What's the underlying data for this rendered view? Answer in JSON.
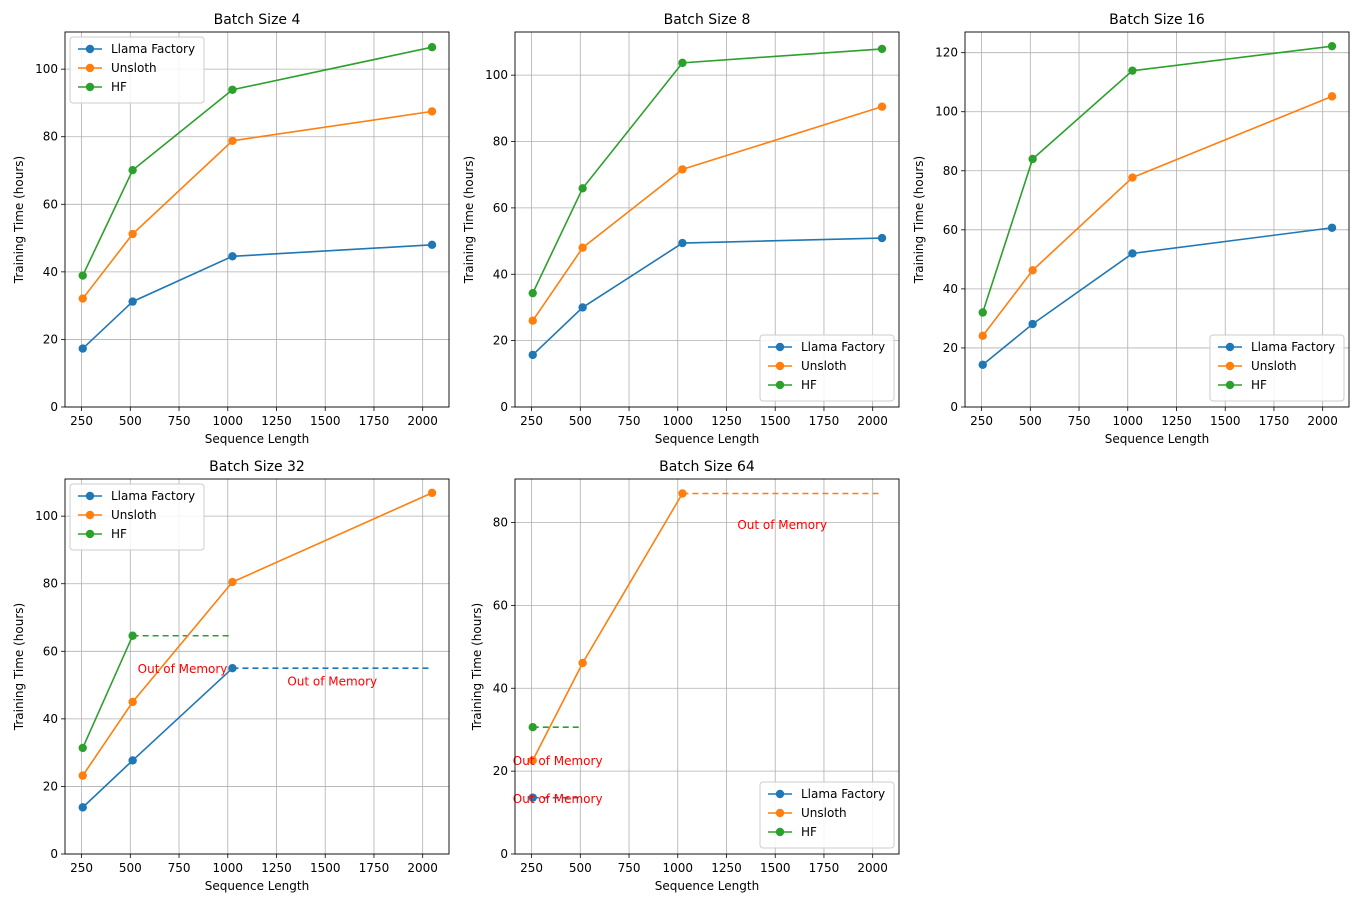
{
  "figure": {
    "colors": {
      "Llama Factory": "#1f77b4",
      "Unsloth": "#ff7f0e",
      "HF": "#2ca02c",
      "oom_text": "#ff0000"
    }
  },
  "chart_data": [
    {
      "type": "line",
      "title": "Batch Size 4",
      "xlabel": "Sequence Length",
      "ylabel": "Training Time (hours)",
      "xlim": [
        165,
        2135
      ],
      "ylim": [
        0,
        111
      ],
      "xticks": [
        250,
        500,
        750,
        1000,
        1250,
        1500,
        1750,
        2000
      ],
      "yticks": [
        0,
        20,
        40,
        60,
        80,
        100
      ],
      "grid": true,
      "legend": "upper-left",
      "x": [
        256,
        512,
        1024,
        2048
      ],
      "series": [
        {
          "name": "Llama Factory",
          "values": [
            17.3,
            31.2,
            44.6,
            48.0
          ]
        },
        {
          "name": "Unsloth",
          "values": [
            32.1,
            51.2,
            78.8,
            87.5
          ]
        },
        {
          "name": "HF",
          "values": [
            38.9,
            70.1,
            93.9,
            106.5
          ]
        }
      ],
      "oom_lines": [],
      "annotations": []
    },
    {
      "type": "line",
      "title": "Batch Size 8",
      "xlabel": "Sequence Length",
      "ylabel": "Training Time (hours)",
      "xlim": [
        165,
        2135
      ],
      "ylim": [
        0,
        113
      ],
      "xticks": [
        250,
        500,
        750,
        1000,
        1250,
        1500,
        1750,
        2000
      ],
      "yticks": [
        0,
        20,
        40,
        60,
        80,
        100
      ],
      "grid": true,
      "legend": "lower-right",
      "x": [
        256,
        512,
        1024,
        2048
      ],
      "series": [
        {
          "name": "Llama Factory",
          "values": [
            15.7,
            30.0,
            49.4,
            50.9
          ]
        },
        {
          "name": "Unsloth",
          "values": [
            26.0,
            48.0,
            71.6,
            90.5
          ]
        },
        {
          "name": "HF",
          "values": [
            34.3,
            65.9,
            103.7,
            107.9
          ]
        }
      ],
      "oom_lines": [],
      "annotations": []
    },
    {
      "type": "line",
      "title": "Batch Size 16",
      "xlabel": "Sequence Length",
      "ylabel": "Training Time (hours)",
      "xlim": [
        165,
        2135
      ],
      "ylim": [
        0,
        127
      ],
      "xticks": [
        250,
        500,
        750,
        1000,
        1250,
        1500,
        1750,
        2000
      ],
      "yticks": [
        0,
        20,
        40,
        60,
        80,
        100,
        120
      ],
      "grid": true,
      "legend": "lower-right",
      "x": [
        256,
        512,
        1024,
        2048
      ],
      "series": [
        {
          "name": "Llama Factory",
          "values": [
            14.3,
            28.1,
            52.0,
            60.7
          ]
        },
        {
          "name": "Unsloth",
          "values": [
            24.1,
            46.3,
            77.7,
            105.2
          ]
        },
        {
          "name": "HF",
          "values": [
            32.0,
            84.0,
            113.9,
            122.2
          ]
        }
      ],
      "oom_lines": [],
      "annotations": []
    },
    {
      "type": "line",
      "title": "Batch Size 32",
      "xlabel": "Sequence Length",
      "ylabel": "Training Time (hours)",
      "xlim": [
        165,
        2135
      ],
      "ylim": [
        0,
        111
      ],
      "xticks": [
        250,
        500,
        750,
        1000,
        1250,
        1500,
        1750,
        2000
      ],
      "yticks": [
        0,
        20,
        40,
        60,
        80,
        100
      ],
      "grid": true,
      "legend": "upper-left",
      "x": [
        256,
        512,
        1024,
        2048
      ],
      "series": [
        {
          "name": "Llama Factory",
          "values": [
            13.8,
            27.7,
            55.0,
            null
          ]
        },
        {
          "name": "Unsloth",
          "values": [
            23.2,
            45.0,
            80.5,
            106.9
          ]
        },
        {
          "name": "HF",
          "values": [
            31.4,
            64.6,
            null,
            null
          ]
        }
      ],
      "oom_lines": [
        {
          "series": "HF",
          "x": [
            512,
            1024
          ],
          "y": 64.6
        },
        {
          "series": "Llama Factory",
          "x": [
            1024,
            2048
          ],
          "y": 55.0
        }
      ],
      "annotations": [
        {
          "text": "Out of Memory",
          "x": 768,
          "y": 54.8
        },
        {
          "text": "Out of Memory",
          "x": 1536,
          "y": 51.0
        }
      ]
    },
    {
      "type": "line",
      "title": "Batch Size 64",
      "xlabel": "Sequence Length",
      "ylabel": "Training Time (hours)",
      "xlim": [
        165,
        2135
      ],
      "ylim": [
        0,
        90.5
      ],
      "xticks": [
        250,
        500,
        750,
        1000,
        1250,
        1500,
        1750,
        2000
      ],
      "yticks": [
        0,
        20,
        40,
        60,
        80
      ],
      "grid": true,
      "legend": "lower-right",
      "x": [
        256,
        512,
        1024,
        2048
      ],
      "series": [
        {
          "name": "Llama Factory",
          "values": [
            13.6,
            null,
            null,
            null
          ]
        },
        {
          "name": "Unsloth",
          "values": [
            22.6,
            46.1,
            87.0,
            null
          ]
        },
        {
          "name": "HF",
          "values": [
            30.6,
            null,
            null,
            null
          ]
        }
      ],
      "oom_lines": [
        {
          "series": "HF",
          "x": [
            256,
            512
          ],
          "y": 30.6
        },
        {
          "series": "Llama Factory",
          "x": [
            256,
            512
          ],
          "y": 13.6
        },
        {
          "series": "Unsloth",
          "x": [
            1024,
            2048
          ],
          "y": 87.0
        }
      ],
      "annotations": [
        {
          "text": "Out of Memory",
          "x": 384,
          "y": 22.5
        },
        {
          "text": "Out of Memory",
          "x": 384,
          "y": 13.3
        },
        {
          "text": "Out of Memory",
          "x": 1536,
          "y": 79.4
        }
      ]
    }
  ]
}
